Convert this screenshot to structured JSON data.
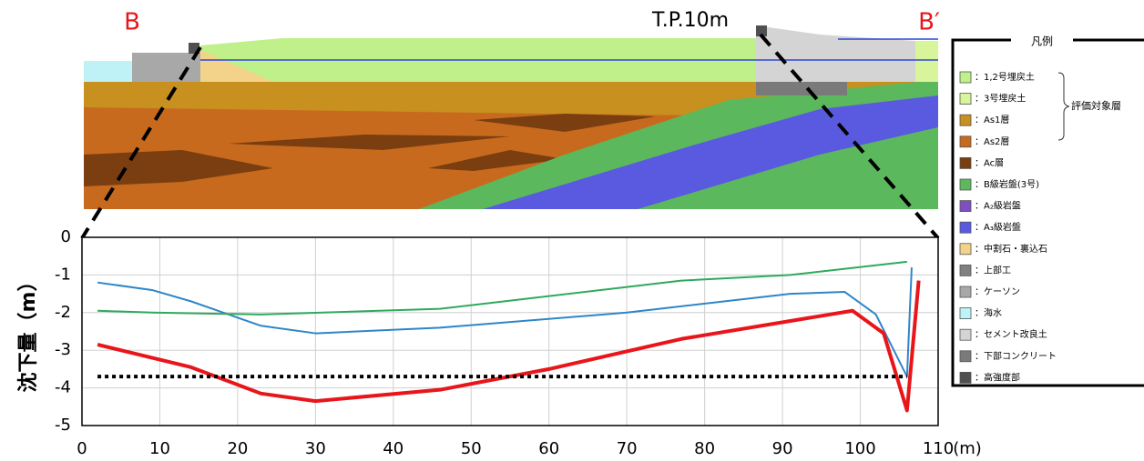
{
  "section": {
    "left_label": "B",
    "right_label": "B′",
    "elevation_label": "T.P.10m"
  },
  "legend": {
    "title": "凡例",
    "group_label": "評価対象層",
    "items": [
      {
        "label": "：1,2号埋戻土",
        "color": "#bff08a"
      },
      {
        "label": "：3号埋戻土",
        "color": "#d9f59b"
      },
      {
        "label": "：As1層",
        "color": "#c8901e"
      },
      {
        "label": "：As2層",
        "color": "#c86a1e"
      },
      {
        "label": "：Ac層",
        "color": "#7a3e10"
      },
      {
        "label": "：B級岩盤(3号)",
        "color": "#5cb85c"
      },
      {
        "label": "：A₂級岩盤",
        "color": "#7e4fc0"
      },
      {
        "label": "：A₃級岩盤",
        "color": "#5a5ae0"
      },
      {
        "label": "：中割石・裏込石",
        "color": "#f3d38a"
      },
      {
        "label": "：上部工",
        "color": "#808080"
      },
      {
        "label": "：ケーソン",
        "color": "#a8a8a8"
      },
      {
        "label": "：海水",
        "color": "#bff2f7"
      },
      {
        "label": "：セメント改良土",
        "color": "#d4d4d4"
      },
      {
        "label": "：下部コンクリート",
        "color": "#7a7a7a"
      },
      {
        "label": "：高強度部",
        "color": "#505050"
      }
    ]
  },
  "chart_data": {
    "type": "line",
    "ylabel": "沈下量（m）",
    "xlabel": "(m)",
    "xlim": [
      0,
      110
    ],
    "xticks": [
      0,
      10,
      20,
      30,
      40,
      50,
      60,
      70,
      80,
      90,
      100,
      110
    ],
    "ylim": [
      -5,
      0
    ],
    "yticks": [
      0,
      -1,
      -2,
      -3,
      -4,
      -5
    ],
    "grid": true,
    "series": [
      {
        "color": "#2e86c8",
        "width": 2,
        "x": [
          2,
          9,
          14,
          23,
          30,
          46,
          70,
          91,
          98,
          102,
          106,
          106.6
        ],
        "values": [
          -1.2,
          -1.4,
          -1.7,
          -2.35,
          -2.55,
          -2.4,
          -2.0,
          -1.5,
          -1.45,
          -2.05,
          -3.7,
          -0.8
        ]
      },
      {
        "color": "#2eaa5c",
        "width": 2,
        "x": [
          2,
          9,
          23,
          46,
          77,
          91,
          106
        ],
        "values": [
          -1.95,
          -2.0,
          -2.05,
          -1.9,
          -1.15,
          -1.0,
          -0.65
        ]
      },
      {
        "color": "#e8161b",
        "width": 4,
        "x": [
          2,
          14,
          23,
          30,
          46,
          60,
          77,
          99,
          103,
          106,
          107.5
        ],
        "values": [
          -2.85,
          -3.45,
          -4.15,
          -4.35,
          -4.05,
          -3.5,
          -2.7,
          -1.95,
          -2.55,
          -4.6,
          -1.15
        ]
      },
      {
        "color": "#000000",
        "width": 4,
        "dash": "4 4",
        "x": [
          2,
          106
        ],
        "values": [
          -3.7,
          -3.7
        ]
      }
    ]
  }
}
